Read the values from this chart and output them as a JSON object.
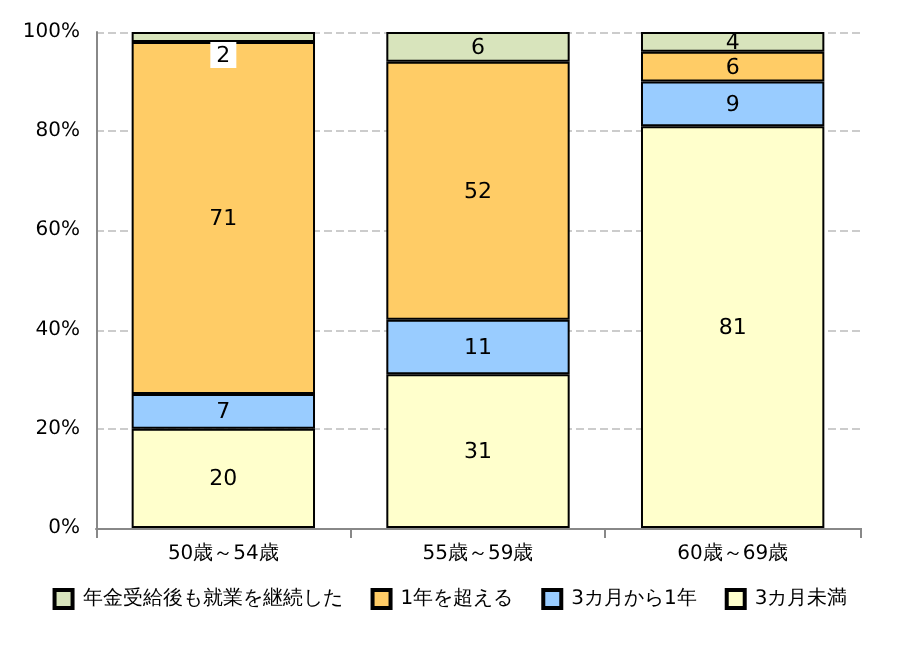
{
  "chart_data": {
    "type": "bar",
    "stacked": true,
    "categories": [
      "50歳～54歳",
      "55歳～59歳",
      "60歳～69歳"
    ],
    "series": [
      {
        "name": "3カ月未満",
        "color": "#ffffcc",
        "values": [
          20,
          31,
          81
        ]
      },
      {
        "name": "3カ月から1年",
        "color": "#99ccff",
        "values": [
          7,
          11,
          9
        ]
      },
      {
        "name": "1年を超える",
        "color": "#ffcc66",
        "values": [
          71,
          52,
          6
        ]
      },
      {
        "name": "年金受給後も就業を継続した",
        "color": "#d8e4bc",
        "values": [
          2,
          6,
          4
        ]
      }
    ],
    "ylim": [
      0,
      100
    ],
    "yticks": [
      {
        "value": 0,
        "label": "0%"
      },
      {
        "value": 20,
        "label": "20%"
      },
      {
        "value": 40,
        "label": "40%"
      },
      {
        "value": 60,
        "label": "60%"
      },
      {
        "value": 80,
        "label": "80%"
      },
      {
        "value": 100,
        "label": "100%"
      }
    ],
    "grid": "y",
    "legend": "bottom",
    "data_labels": true
  }
}
